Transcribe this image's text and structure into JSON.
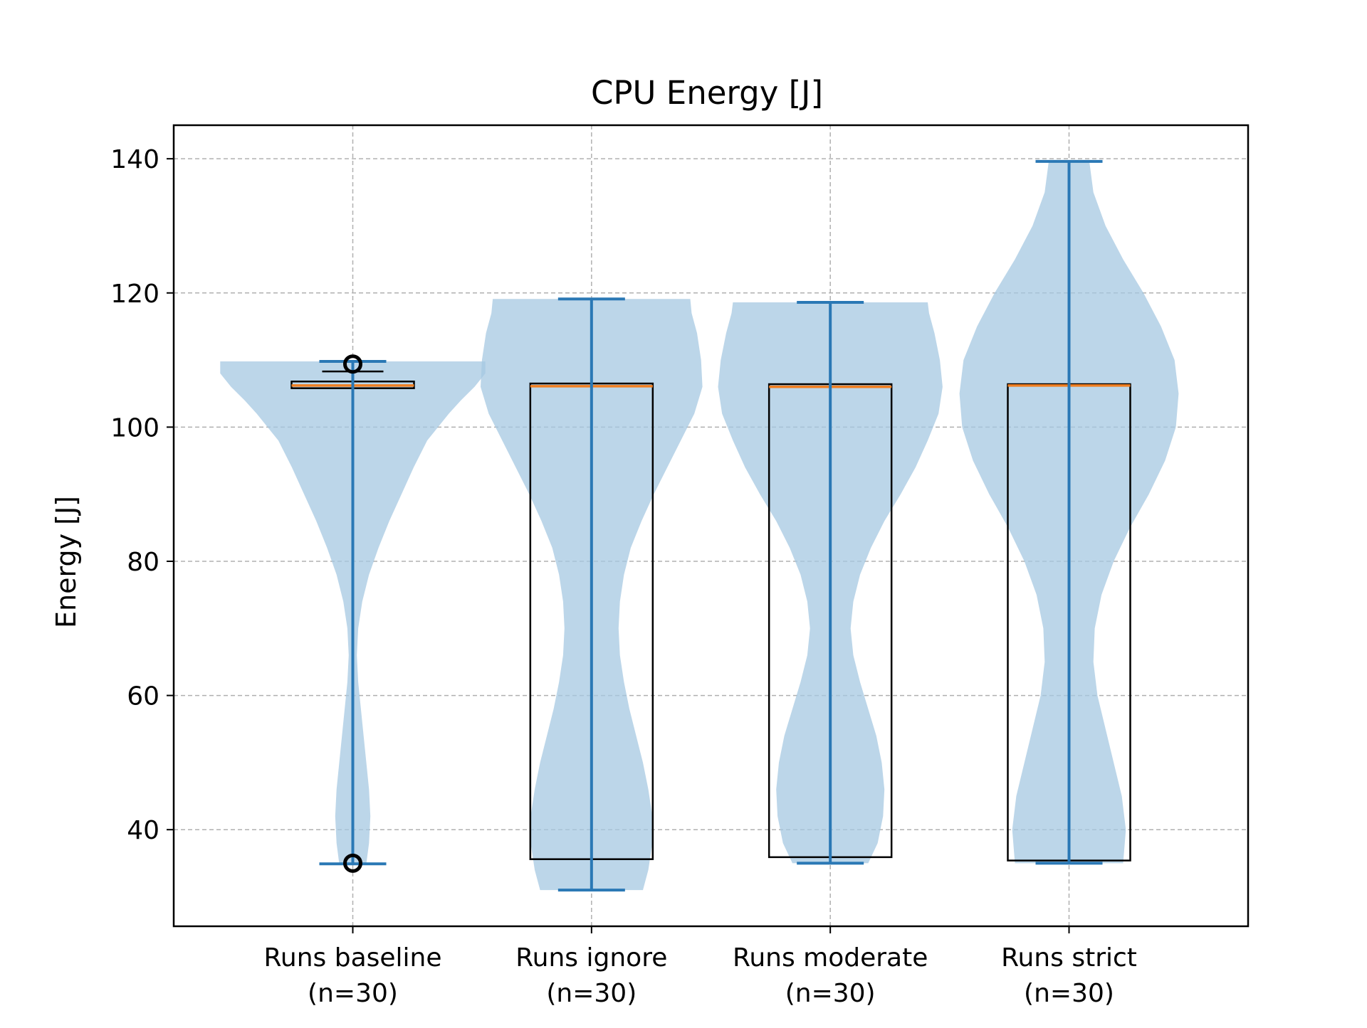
{
  "chart_data": {
    "type": "violin",
    "title": "CPU Energy [J]",
    "xlabel": "",
    "ylabel": "Energy [J]",
    "ylim": [
      25.6,
      145
    ],
    "yticks": [
      40,
      60,
      80,
      100,
      120,
      140
    ],
    "grid": true,
    "categories": [
      [
        "Runs baseline",
        "(n=30)"
      ],
      [
        "Runs ignore",
        "(n=30)"
      ],
      [
        "Runs moderate",
        "(n=30)"
      ],
      [
        "Runs strict",
        "(n=30)"
      ]
    ],
    "violins": [
      {
        "min": 34.9,
        "max": 109.8,
        "box": {
          "q1": 105.8,
          "median": 106.2,
          "q3": 106.8
        },
        "whiskers": [
          105.8,
          108.3
        ],
        "outliers": [
          109.4,
          35.0
        ],
        "density_y": [
          34.9,
          38,
          42,
          46,
          50,
          54,
          58,
          62,
          66,
          70,
          74,
          78,
          82,
          86,
          90,
          94,
          98,
          100,
          102,
          104,
          106,
          108,
          109.8
        ],
        "density_w": [
          0.1,
          0.12,
          0.13,
          0.12,
          0.1,
          0.08,
          0.06,
          0.04,
          0.03,
          0.04,
          0.07,
          0.12,
          0.19,
          0.27,
          0.36,
          0.45,
          0.55,
          0.63,
          0.71,
          0.8,
          0.9,
          0.98,
          0.98
        ]
      },
      {
        "min": 31.0,
        "max": 119.1,
        "box": {
          "q1": 35.6,
          "median": 106.1,
          "q3": 106.5
        },
        "whiskers": [
          31.0,
          119.1
        ],
        "outliers": [],
        "density_y": [
          31.0,
          34,
          38,
          42,
          46,
          50,
          54,
          58,
          62,
          66,
          70,
          74,
          78,
          82,
          86,
          90,
          94,
          98,
          102,
          106,
          110,
          114,
          117,
          119.1
        ],
        "density_w": [
          0.38,
          0.42,
          0.45,
          0.45,
          0.42,
          0.38,
          0.33,
          0.28,
          0.24,
          0.21,
          0.2,
          0.21,
          0.24,
          0.29,
          0.37,
          0.46,
          0.56,
          0.66,
          0.76,
          0.82,
          0.81,
          0.78,
          0.74,
          0.73
        ]
      },
      {
        "min": 35.0,
        "max": 118.6,
        "box": {
          "q1": 35.9,
          "median": 106.0,
          "q3": 106.4
        },
        "whiskers": [
          35.0,
          118.6
        ],
        "outliers": [],
        "density_y": [
          35.0,
          38,
          42,
          46,
          50,
          54,
          58,
          62,
          66,
          70,
          74,
          78,
          82,
          86,
          90,
          94,
          98,
          102,
          106,
          110,
          114,
          117,
          118.6
        ],
        "density_w": [
          0.28,
          0.35,
          0.39,
          0.4,
          0.38,
          0.34,
          0.28,
          0.22,
          0.17,
          0.15,
          0.17,
          0.22,
          0.3,
          0.4,
          0.52,
          0.63,
          0.72,
          0.8,
          0.83,
          0.81,
          0.77,
          0.73,
          0.72
        ]
      },
      {
        "min": 35.0,
        "max": 139.6,
        "box": {
          "q1": 35.4,
          "median": 106.2,
          "q3": 106.4
        },
        "whiskers": [
          35.0,
          139.6
        ],
        "outliers": [],
        "density_y": [
          35.0,
          40,
          45,
          50,
          55,
          60,
          65,
          70,
          75,
          80,
          85,
          90,
          95,
          100,
          105,
          110,
          115,
          120,
          125,
          130,
          135,
          139.6
        ],
        "density_w": [
          0.4,
          0.42,
          0.39,
          0.33,
          0.27,
          0.21,
          0.18,
          0.19,
          0.24,
          0.33,
          0.45,
          0.59,
          0.71,
          0.79,
          0.81,
          0.78,
          0.68,
          0.55,
          0.4,
          0.27,
          0.18,
          0.15
        ]
      }
    ]
  },
  "colors": {
    "violin_fill": "#a6c8e2",
    "violin_line": "#2a78b5",
    "median": "#f07f22",
    "grid": "#b0b0b0",
    "box": "#000000"
  }
}
